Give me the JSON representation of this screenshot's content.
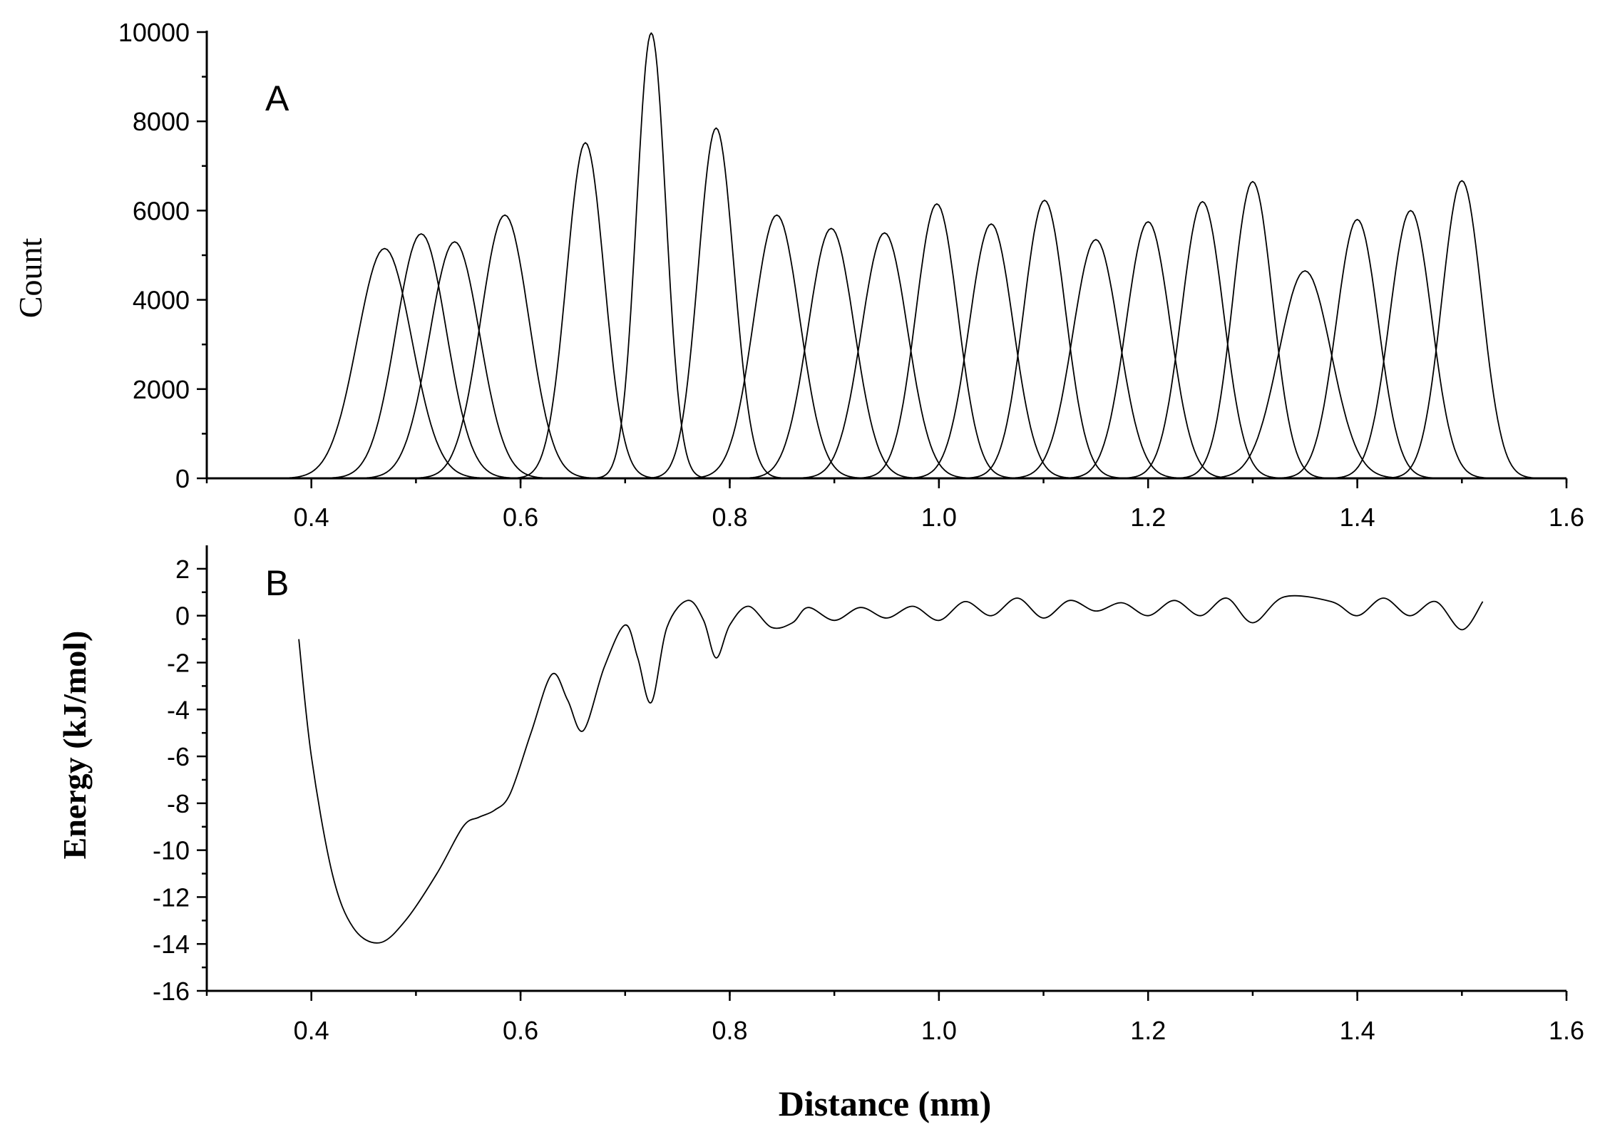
{
  "chart_data": [
    {
      "type": "line",
      "panel_label": "A",
      "ylabel": "Count",
      "xlim": [
        0.3,
        1.6
      ],
      "ylim": [
        0,
        10000
      ],
      "xticks": [
        "0.4",
        "0.6",
        "0.8",
        "1.0",
        "1.2",
        "1.4",
        "1.6"
      ],
      "yticks": [
        "0",
        "2000",
        "4000",
        "6000",
        "8000",
        "10000"
      ],
      "histograms": [
        {
          "center": 0.47,
          "peak": 5150,
          "width": 0.026
        },
        {
          "center": 0.505,
          "peak": 5480,
          "width": 0.024
        },
        {
          "center": 0.537,
          "peak": 5300,
          "width": 0.024
        },
        {
          "center": 0.585,
          "peak": 5900,
          "width": 0.023
        },
        {
          "center": 0.662,
          "peak": 7520,
          "width": 0.018
        },
        {
          "center": 0.725,
          "peak": 9980,
          "width": 0.014
        },
        {
          "center": 0.787,
          "peak": 7850,
          "width": 0.017
        },
        {
          "center": 0.845,
          "peak": 5900,
          "width": 0.022
        },
        {
          "center": 0.897,
          "peak": 5600,
          "width": 0.022
        },
        {
          "center": 0.948,
          "peak": 5500,
          "width": 0.022
        },
        {
          "center": 0.998,
          "peak": 6150,
          "width": 0.02
        },
        {
          "center": 1.05,
          "peak": 5700,
          "width": 0.021
        },
        {
          "center": 1.101,
          "peak": 6230,
          "width": 0.02
        },
        {
          "center": 1.15,
          "peak": 5350,
          "width": 0.022
        },
        {
          "center": 1.2,
          "peak": 5750,
          "width": 0.021
        },
        {
          "center": 1.252,
          "peak": 6200,
          "width": 0.02
        },
        {
          "center": 1.3,
          "peak": 6650,
          "width": 0.019
        },
        {
          "center": 1.35,
          "peak": 4650,
          "width": 0.025
        },
        {
          "center": 1.4,
          "peak": 5800,
          "width": 0.02
        },
        {
          "center": 1.451,
          "peak": 6000,
          "width": 0.02
        },
        {
          "center": 1.5,
          "peak": 6670,
          "width": 0.019
        }
      ]
    },
    {
      "type": "line",
      "panel_label": "B",
      "ylabel": "Energy (kJ/mol)",
      "xlabel": "Distance (nm)",
      "xlim": [
        0.3,
        1.6
      ],
      "ylim": [
        -16,
        3
      ],
      "xticks": [
        "0.4",
        "0.6",
        "0.8",
        "1.0",
        "1.2",
        "1.4",
        "1.6"
      ],
      "yticks": [
        "2",
        "0",
        "-2",
        "-4",
        "-6",
        "-8",
        "-10",
        "-12",
        "-14",
        "-16"
      ],
      "series": [
        {
          "x": [
            0.388,
            0.4,
            0.42,
            0.44,
            0.465,
            0.49,
            0.52,
            0.545,
            0.56,
            0.575,
            0.59,
            0.61,
            0.63,
            0.645,
            0.66,
            0.68,
            0.7,
            0.712,
            0.725,
            0.74,
            0.76,
            0.775,
            0.787,
            0.8,
            0.818,
            0.84,
            0.86,
            0.875,
            0.9,
            0.925,
            0.95,
            0.975,
            1.0,
            1.025,
            1.05,
            1.075,
            1.1,
            1.125,
            1.15,
            1.175,
            1.2,
            1.225,
            1.25,
            1.275,
            1.3,
            1.33,
            1.375,
            1.4,
            1.425,
            1.45,
            1.475,
            1.5,
            1.52
          ],
          "y": [
            -1.0,
            -6.0,
            -11.0,
            -13.3,
            -13.95,
            -13.0,
            -11.0,
            -9.0,
            -8.6,
            -8.3,
            -7.6,
            -5.0,
            -2.5,
            -3.6,
            -4.9,
            -2.2,
            -0.4,
            -1.8,
            -3.7,
            -0.5,
            0.65,
            -0.2,
            -1.8,
            -0.4,
            0.4,
            -0.5,
            -0.3,
            0.35,
            -0.2,
            0.35,
            -0.1,
            0.4,
            -0.2,
            0.6,
            0.0,
            0.75,
            -0.1,
            0.65,
            0.2,
            0.55,
            0.0,
            0.65,
            0.0,
            0.75,
            -0.3,
            0.8,
            0.6,
            0.0,
            0.75,
            0.0,
            0.6,
            -0.6,
            0.6
          ]
        }
      ]
    }
  ]
}
